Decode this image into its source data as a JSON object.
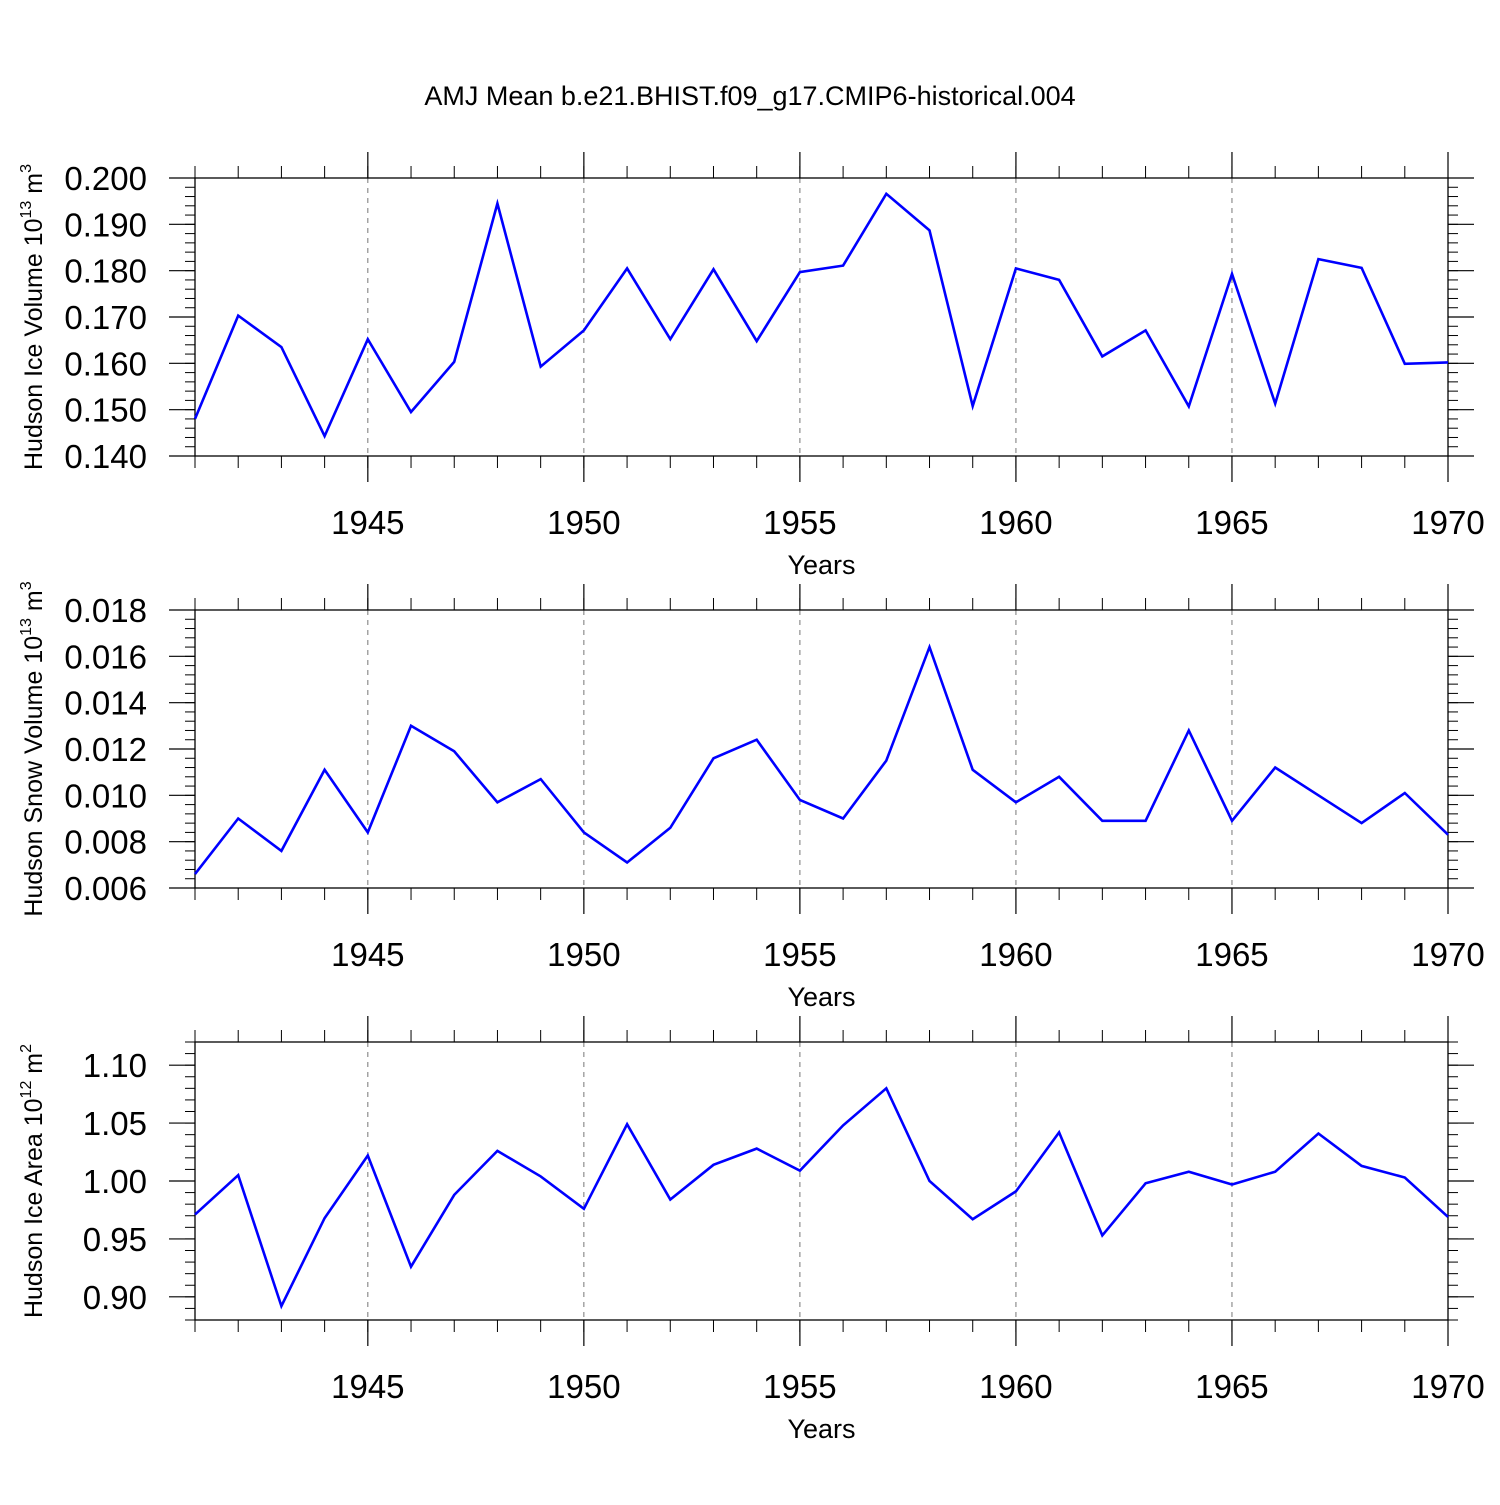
{
  "title": "AMJ Mean b.e21.BHIST.f09_g17.CMIP6-historical.004",
  "line_color": "#0000ff",
  "chart_data": [
    {
      "type": "line",
      "ylabel_main": "Hudson Ice Volume 10",
      "ylabel_exp": "13",
      "ylabel_unit": " m",
      "ylabel_unit_exp": "3",
      "xlabel": "Years",
      "xlim": [
        1941,
        1970
      ],
      "ylim": [
        0.14,
        0.2
      ],
      "yticks": [
        0.14,
        0.15,
        0.16,
        0.17,
        0.18,
        0.19,
        0.2
      ],
      "ytick_labels": [
        "0.140",
        "0.150",
        "0.160",
        "0.170",
        "0.180",
        "0.190",
        "0.200"
      ],
      "ymin_step": 0.002,
      "xticks": [
        1945,
        1950,
        1955,
        1960,
        1965,
        1970
      ],
      "xtick_labels": [
        "1945",
        "1950",
        "1955",
        "1960",
        "1965",
        "1970"
      ],
      "x": [
        1941,
        1942,
        1943,
        1944,
        1945,
        1946,
        1947,
        1948,
        1949,
        1950,
        1951,
        1952,
        1953,
        1954,
        1955,
        1956,
        1957,
        1958,
        1959,
        1960,
        1961,
        1962,
        1963,
        1964,
        1965,
        1966,
        1967,
        1968,
        1969,
        1970
      ],
      "values": [
        0.148,
        0.1703,
        0.1635,
        0.1443,
        0.1652,
        0.1495,
        0.1603,
        0.1945,
        0.1593,
        0.1671,
        0.1805,
        0.1652,
        0.1803,
        0.1648,
        0.1797,
        0.1811,
        0.1966,
        0.1887,
        0.1508,
        0.1805,
        0.178,
        0.1615,
        0.1671,
        0.1507,
        0.1793,
        0.1513,
        0.1825,
        0.1806,
        0.1599,
        0.1602
      ]
    },
    {
      "type": "line",
      "ylabel_main": "Hudson Snow Volume 10",
      "ylabel_exp": "13",
      "ylabel_unit": " m",
      "ylabel_unit_exp": "3",
      "xlabel": "Years",
      "xlim": [
        1941,
        1970
      ],
      "ylim": [
        0.006,
        0.018
      ],
      "yticks": [
        0.006,
        0.008,
        0.01,
        0.012,
        0.014,
        0.016,
        0.018
      ],
      "ytick_labels": [
        "0.006",
        "0.008",
        "0.010",
        "0.012",
        "0.014",
        "0.016",
        "0.018"
      ],
      "ymin_step": 0.0004,
      "xticks": [
        1945,
        1950,
        1955,
        1960,
        1965,
        1970
      ],
      "xtick_labels": [
        "1945",
        "1950",
        "1955",
        "1960",
        "1965",
        "1970"
      ],
      "x": [
        1941,
        1942,
        1943,
        1944,
        1945,
        1946,
        1947,
        1948,
        1949,
        1950,
        1951,
        1952,
        1953,
        1954,
        1955,
        1956,
        1957,
        1958,
        1959,
        1960,
        1961,
        1962,
        1963,
        1964,
        1965,
        1966,
        1967,
        1968,
        1969,
        1970
      ],
      "values": [
        0.0066,
        0.009,
        0.0076,
        0.0111,
        0.0084,
        0.013,
        0.0119,
        0.0097,
        0.0107,
        0.0084,
        0.0071,
        0.0086,
        0.0116,
        0.0124,
        0.0098,
        0.009,
        0.0115,
        0.0164,
        0.0111,
        0.0097,
        0.0108,
        0.0089,
        0.0089,
        0.0128,
        0.0089,
        0.0112,
        0.01,
        0.0088,
        0.0101,
        0.0083
      ]
    },
    {
      "type": "line",
      "ylabel_main": "Hudson Ice Area 10",
      "ylabel_exp": "12",
      "ylabel_unit": " m",
      "ylabel_unit_exp": "2",
      "xlabel": "Years",
      "xlim": [
        1941,
        1970
      ],
      "ylim": [
        0.88,
        1.12
      ],
      "yticks": [
        0.9,
        0.95,
        1.0,
        1.05,
        1.1
      ],
      "ytick_labels": [
        "0.90",
        "0.95",
        "1.00",
        "1.05",
        "1.10"
      ],
      "ymin_step": 0.01,
      "xticks": [
        1945,
        1950,
        1955,
        1960,
        1965,
        1970
      ],
      "xtick_labels": [
        "1945",
        "1950",
        "1955",
        "1960",
        "1965",
        "1970"
      ],
      "x": [
        1941,
        1942,
        1943,
        1944,
        1945,
        1946,
        1947,
        1948,
        1949,
        1950,
        1951,
        1952,
        1953,
        1954,
        1955,
        1956,
        1957,
        1958,
        1959,
        1960,
        1961,
        1962,
        1963,
        1964,
        1965,
        1966,
        1967,
        1968,
        1969,
        1970
      ],
      "values": [
        0.971,
        1.005,
        0.892,
        0.968,
        1.022,
        0.926,
        0.988,
        1.026,
        1.004,
        0.976,
        1.049,
        0.984,
        1.014,
        1.028,
        1.009,
        1.048,
        1.08,
        1.0,
        0.967,
        0.991,
        1.042,
        0.953,
        0.998,
        1.008,
        0.997,
        1.008,
        1.041,
        1.013,
        1.003,
        0.969
      ]
    }
  ]
}
